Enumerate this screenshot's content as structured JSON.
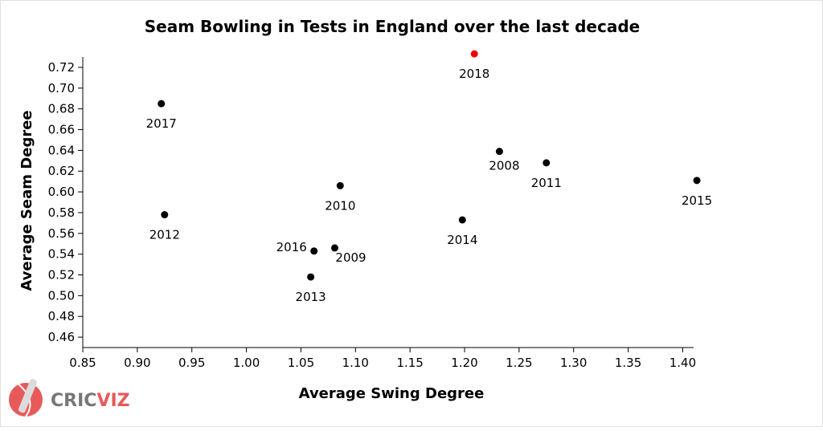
{
  "chart_data": {
    "type": "scatter",
    "title": "Seam Bowling in Tests in England over the last decade",
    "xlabel": "Average Swing Degree",
    "ylabel": "Average Seam Degree",
    "xlim": [
      0.85,
      1.41
    ],
    "ylim": [
      0.45,
      0.73
    ],
    "x_ticks": [
      "0.85",
      "0.90",
      "0.95",
      "1.00",
      "1.05",
      "1.10",
      "1.15",
      "1.20",
      "1.25",
      "1.30",
      "1.35",
      "1.40"
    ],
    "y_ticks": [
      "0.46",
      "0.48",
      "0.50",
      "0.52",
      "0.54",
      "0.56",
      "0.58",
      "0.60",
      "0.62",
      "0.64",
      "0.66",
      "0.68",
      "0.70",
      "0.72"
    ],
    "grid": false,
    "points": [
      {
        "label": "2008",
        "x": 1.232,
        "y": 0.639,
        "color": "#000000"
      },
      {
        "label": "2009",
        "x": 1.081,
        "y": 0.546,
        "color": "#000000"
      },
      {
        "label": "2010",
        "x": 1.086,
        "y": 0.606,
        "color": "#000000"
      },
      {
        "label": "2011",
        "x": 1.275,
        "y": 0.628,
        "color": "#000000"
      },
      {
        "label": "2012",
        "x": 0.925,
        "y": 0.578,
        "color": "#000000"
      },
      {
        "label": "2013",
        "x": 1.059,
        "y": 0.518,
        "color": "#000000"
      },
      {
        "label": "2014",
        "x": 1.198,
        "y": 0.573,
        "color": "#000000"
      },
      {
        "label": "2015",
        "x": 1.413,
        "y": 0.611,
        "color": "#000000"
      },
      {
        "label": "2016",
        "x": 1.062,
        "y": 0.543,
        "color": "#000000"
      },
      {
        "label": "2017",
        "x": 0.922,
        "y": 0.685,
        "color": "#000000"
      },
      {
        "label": "2018",
        "x": 1.209,
        "y": 0.733,
        "color": "#ee0000"
      }
    ]
  },
  "branding": {
    "logo_part1": "CRIC",
    "logo_part2": "VIZ",
    "logo_color_1": "#777777",
    "logo_color_2": "#e85a5a"
  }
}
